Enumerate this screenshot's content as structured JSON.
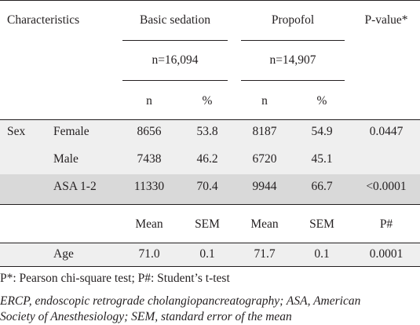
{
  "table": {
    "header": {
      "characteristics": "Characteristics",
      "group1": "Basic sedation",
      "group2": "Propofol",
      "pvalue": "P-value*",
      "group1_n": "n=16,094",
      "group2_n": "n=14,907",
      "n_label": "n",
      "pct_label": "%"
    },
    "rows": [
      {
        "category": "Sex",
        "label": "Female",
        "n1": "8656",
        "p1": "53.8",
        "n2": "8187",
        "p2": "54.9",
        "pval": "0.0447"
      },
      {
        "category": "",
        "label": "Male",
        "n1": "7438",
        "p1": "46.2",
        "n2": "6720",
        "p2": "45.1",
        "pval": ""
      },
      {
        "category": "",
        "label": "ASA 1-2",
        "n1": "11330",
        "p1": "70.4",
        "n2": "9944",
        "p2": "66.7",
        "pval": "<0.0001"
      }
    ],
    "subheader": {
      "mean1": "Mean",
      "sem1": "SEM",
      "mean2": "Mean",
      "sem2": "SEM",
      "pval": "P#"
    },
    "age_row": {
      "label": "Age",
      "mean1": "71.0",
      "sem1": "0.1",
      "mean2": "71.7",
      "sem2": "0.1",
      "pval": "0.0001"
    }
  },
  "footnotes": {
    "tests": "P*: Pearson chi-square test; P#: Student’s t-test",
    "abbrev_line1": "ERCP, endoscopic retrograde cholangiopancreatography; ASA, American",
    "abbrev_line2": "Society of Anesthesiology; SEM, standard error of the mean"
  }
}
